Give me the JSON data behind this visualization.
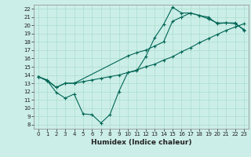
{
  "title": "",
  "xlabel": "Humidex (Indice chaleur)",
  "bg_color": "#cceee8",
  "grid_color": "#aaddcc",
  "line_color": "#006655",
  "xlim": [
    -0.5,
    23.5
  ],
  "ylim": [
    7.5,
    22.5
  ],
  "xticks": [
    0,
    1,
    2,
    3,
    4,
    5,
    6,
    7,
    8,
    9,
    10,
    11,
    12,
    13,
    14,
    15,
    16,
    17,
    18,
    19,
    20,
    21,
    22,
    23
  ],
  "yticks": [
    8,
    9,
    10,
    11,
    12,
    13,
    14,
    15,
    16,
    17,
    18,
    19,
    20,
    21,
    22
  ],
  "line1_x": [
    0,
    1,
    2,
    3,
    4,
    5,
    6,
    7,
    8,
    9,
    10,
    11,
    12,
    13,
    14,
    15,
    16,
    17,
    18,
    19,
    20,
    21,
    22,
    23
  ],
  "line1_y": [
    13.8,
    13.3,
    11.9,
    11.2,
    11.7,
    9.3,
    9.2,
    8.2,
    9.2,
    12.0,
    14.3,
    14.5,
    16.2,
    18.5,
    20.1,
    22.2,
    21.5,
    21.5,
    21.2,
    21.0,
    20.2,
    20.3,
    20.2,
    19.5
  ],
  "line2_x": [
    0,
    1,
    2,
    3,
    4,
    5,
    6,
    7,
    8,
    9,
    10,
    11,
    12,
    13,
    14,
    15,
    16,
    17,
    18,
    19,
    20,
    21,
    22,
    23
  ],
  "line2_y": [
    13.8,
    13.4,
    12.5,
    13.0,
    13.0,
    13.2,
    13.4,
    13.6,
    13.8,
    14.0,
    14.3,
    14.6,
    15.0,
    15.3,
    15.8,
    16.2,
    16.8,
    17.3,
    17.9,
    18.4,
    18.9,
    19.4,
    19.8,
    20.2
  ],
  "line3_x": [
    0,
    1,
    2,
    3,
    4,
    10,
    11,
    12,
    13,
    14,
    15,
    16,
    17,
    18,
    19,
    20,
    21,
    22,
    23
  ],
  "line3_y": [
    13.8,
    13.3,
    12.5,
    13.0,
    13.0,
    16.3,
    16.7,
    17.0,
    17.5,
    18.0,
    20.5,
    21.0,
    21.5,
    21.2,
    20.8,
    20.3,
    20.3,
    20.3,
    19.4
  ]
}
